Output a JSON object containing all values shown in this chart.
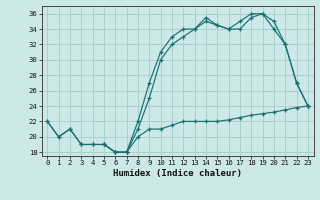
{
  "xlabel": "Humidex (Indice chaleur)",
  "xlim": [
    -0.5,
    23.5
  ],
  "ylim": [
    17.5,
    37
  ],
  "yticks": [
    18,
    20,
    22,
    24,
    26,
    28,
    30,
    32,
    34,
    36
  ],
  "xticks": [
    0,
    1,
    2,
    3,
    4,
    5,
    6,
    7,
    8,
    9,
    10,
    11,
    12,
    13,
    14,
    15,
    16,
    17,
    18,
    19,
    20,
    21,
    22,
    23
  ],
  "bg_color": "#cce8e8",
  "grid_color": "#aad0d0",
  "line_color": "#1a7070",
  "line1_x": [
    0,
    1,
    2,
    3,
    4,
    5,
    6,
    7,
    8,
    9,
    10,
    11,
    12,
    13,
    14,
    15,
    16,
    17,
    18,
    19,
    20,
    21,
    22,
    23
  ],
  "line1_y": [
    22,
    20,
    21,
    19,
    19,
    19,
    18,
    18,
    22,
    27,
    31,
    33,
    34,
    34,
    35.5,
    34.5,
    34,
    35,
    36,
    36,
    34,
    32,
    27,
    24
  ],
  "line2_x": [
    5,
    6,
    7,
    8,
    9,
    10,
    11,
    12,
    13,
    14,
    15,
    16,
    17,
    18,
    19,
    20,
    21,
    22,
    23
  ],
  "line2_y": [
    19,
    18,
    18,
    21,
    25,
    30,
    32,
    33,
    34,
    35,
    34.5,
    34,
    34,
    35.5,
    36,
    35,
    32,
    27,
    24
  ],
  "line3_x": [
    0,
    1,
    2,
    3,
    4,
    5,
    6,
    7,
    8,
    9,
    10,
    11,
    12,
    13,
    14,
    15,
    16,
    17,
    18,
    19,
    20,
    21,
    22,
    23
  ],
  "line3_y": [
    22,
    20,
    21,
    19,
    19,
    19,
    18,
    18,
    20,
    21,
    21,
    21.5,
    22,
    22,
    22,
    22,
    22.2,
    22.5,
    22.8,
    23,
    23.2,
    23.5,
    23.8,
    24
  ]
}
